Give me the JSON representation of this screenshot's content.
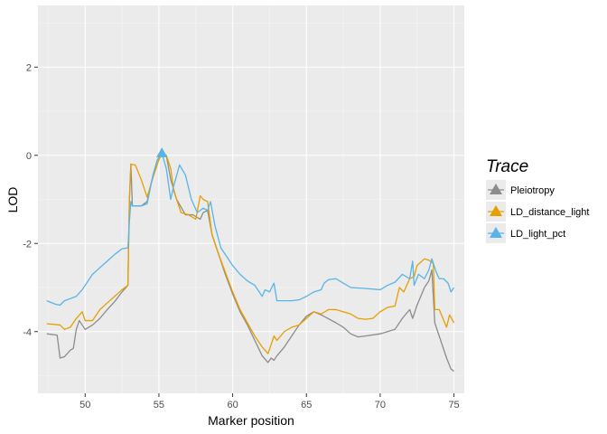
{
  "chart_data": {
    "type": "line",
    "xlabel": "Marker position",
    "ylabel": "LOD",
    "xlim": [
      46.8,
      75.7
    ],
    "ylim": [
      -5.4,
      3.4
    ],
    "x_ticks": [
      50,
      55,
      60,
      65,
      70,
      75
    ],
    "y_ticks": [
      2,
      0,
      -2,
      -4
    ],
    "x_tick_labels": [
      "50",
      "55",
      "60",
      "65",
      "70",
      "75"
    ],
    "y_tick_labels": [
      "2",
      "0",
      "-2",
      "-4"
    ],
    "grid": true,
    "legend": {
      "title": "Trace",
      "position": "right"
    },
    "peak": {
      "x": 55.2,
      "y": 0.05
    },
    "series": [
      {
        "name": "Pleiotropy",
        "color": "#8c8c8c",
        "points": [
          [
            47.4,
            -4.05
          ],
          [
            48.1,
            -4.08
          ],
          [
            48.3,
            -4.6
          ],
          [
            48.6,
            -4.57
          ],
          [
            49.0,
            -4.42
          ],
          [
            49.2,
            -4.38
          ],
          [
            49.4,
            -3.95
          ],
          [
            49.6,
            -3.75
          ],
          [
            49.8,
            -3.85
          ],
          [
            50.0,
            -3.95
          ],
          [
            50.5,
            -3.85
          ],
          [
            51.0,
            -3.7
          ],
          [
            51.5,
            -3.5
          ],
          [
            52.0,
            -3.32
          ],
          [
            52.5,
            -3.1
          ],
          [
            52.9,
            -2.95
          ],
          [
            53.0,
            -1.0
          ],
          [
            53.1,
            -0.2
          ],
          [
            53.2,
            -1.15
          ],
          [
            53.8,
            -1.15
          ],
          [
            54.2,
            -1.05
          ],
          [
            54.6,
            -0.45
          ],
          [
            54.9,
            -0.1
          ],
          [
            55.2,
            0.05
          ],
          [
            55.5,
            0.0
          ],
          [
            55.8,
            -0.55
          ],
          [
            56.2,
            -1.0
          ],
          [
            56.8,
            -1.35
          ],
          [
            57.3,
            -1.35
          ],
          [
            57.8,
            -1.45
          ],
          [
            58.0,
            -1.3
          ],
          [
            58.3,
            -1.25
          ],
          [
            58.6,
            -1.8
          ],
          [
            59.0,
            -2.2
          ],
          [
            59.5,
            -2.7
          ],
          [
            60.0,
            -3.15
          ],
          [
            60.5,
            -3.55
          ],
          [
            61.0,
            -3.85
          ],
          [
            61.5,
            -4.2
          ],
          [
            62.0,
            -4.55
          ],
          [
            62.4,
            -4.7
          ],
          [
            62.6,
            -4.6
          ],
          [
            62.8,
            -4.65
          ],
          [
            63.0,
            -4.55
          ],
          [
            63.5,
            -4.35
          ],
          [
            64.0,
            -4.1
          ],
          [
            64.5,
            -3.85
          ],
          [
            65.0,
            -3.65
          ],
          [
            65.5,
            -3.55
          ],
          [
            66.0,
            -3.62
          ],
          [
            67.0,
            -3.8
          ],
          [
            67.5,
            -3.9
          ],
          [
            68.0,
            -4.05
          ],
          [
            68.5,
            -4.12
          ],
          [
            69.0,
            -4.1
          ],
          [
            70.0,
            -4.05
          ],
          [
            70.5,
            -4.0
          ],
          [
            71.0,
            -3.95
          ],
          [
            71.5,
            -3.7
          ],
          [
            72.0,
            -3.5
          ],
          [
            72.2,
            -3.7
          ],
          [
            72.5,
            -3.4
          ],
          [
            73.0,
            -3.0
          ],
          [
            73.3,
            -2.85
          ],
          [
            73.5,
            -2.6
          ],
          [
            73.7,
            -3.8
          ],
          [
            74.0,
            -4.1
          ],
          [
            74.5,
            -4.6
          ],
          [
            74.8,
            -4.85
          ],
          [
            75.0,
            -4.9
          ]
        ]
      },
      {
        "name": "LD_distance_light",
        "color": "#e69f00",
        "points": [
          [
            47.4,
            -3.82
          ],
          [
            48.3,
            -3.85
          ],
          [
            48.6,
            -3.95
          ],
          [
            49.0,
            -3.9
          ],
          [
            49.4,
            -3.7
          ],
          [
            49.8,
            -3.55
          ],
          [
            50.0,
            -3.75
          ],
          [
            50.5,
            -3.75
          ],
          [
            51.0,
            -3.5
          ],
          [
            51.5,
            -3.35
          ],
          [
            52.0,
            -3.2
          ],
          [
            52.5,
            -3.05
          ],
          [
            52.9,
            -2.95
          ],
          [
            53.0,
            -1.0
          ],
          [
            53.1,
            -0.2
          ],
          [
            53.4,
            -0.22
          ],
          [
            53.8,
            -0.55
          ],
          [
            54.2,
            -0.95
          ],
          [
            54.6,
            -0.5
          ],
          [
            55.0,
            -0.1
          ],
          [
            55.2,
            0.03
          ],
          [
            55.5,
            0.0
          ],
          [
            55.8,
            -0.3
          ],
          [
            56.0,
            -0.8
          ],
          [
            56.5,
            -1.3
          ],
          [
            57.0,
            -1.35
          ],
          [
            57.5,
            -1.45
          ],
          [
            57.8,
            -0.92
          ],
          [
            58.0,
            -1.0
          ],
          [
            58.3,
            -1.05
          ],
          [
            58.6,
            -1.8
          ],
          [
            59.0,
            -2.2
          ],
          [
            59.5,
            -2.65
          ],
          [
            60.0,
            -3.1
          ],
          [
            60.5,
            -3.5
          ],
          [
            61.0,
            -3.8
          ],
          [
            61.5,
            -4.1
          ],
          [
            62.0,
            -4.35
          ],
          [
            62.4,
            -4.5
          ],
          [
            62.8,
            -4.1
          ],
          [
            63.0,
            -4.2
          ],
          [
            63.5,
            -4.0
          ],
          [
            64.0,
            -3.9
          ],
          [
            64.5,
            -3.85
          ],
          [
            65.0,
            -3.7
          ],
          [
            65.5,
            -3.55
          ],
          [
            66.0,
            -3.6
          ],
          [
            66.5,
            -3.5
          ],
          [
            67.0,
            -3.5
          ],
          [
            68.0,
            -3.6
          ],
          [
            68.5,
            -3.7
          ],
          [
            69.0,
            -3.72
          ],
          [
            69.5,
            -3.7
          ],
          [
            70.0,
            -3.55
          ],
          [
            70.5,
            -3.45
          ],
          [
            71.0,
            -3.42
          ],
          [
            71.3,
            -3.0
          ],
          [
            71.6,
            -3.1
          ],
          [
            72.0,
            -2.8
          ],
          [
            72.3,
            -2.75
          ],
          [
            72.5,
            -2.5
          ],
          [
            73.0,
            -2.35
          ],
          [
            73.3,
            -2.38
          ],
          [
            73.6,
            -2.45
          ],
          [
            73.7,
            -3.5
          ],
          [
            74.0,
            -3.5
          ],
          [
            74.5,
            -3.9
          ],
          [
            74.7,
            -3.62
          ],
          [
            75.0,
            -3.8
          ]
        ]
      },
      {
        "name": "LD_light_pct",
        "color": "#56b4e9",
        "points": [
          [
            47.4,
            -3.3
          ],
          [
            48.0,
            -3.38
          ],
          [
            48.3,
            -3.4
          ],
          [
            48.6,
            -3.3
          ],
          [
            49.0,
            -3.25
          ],
          [
            49.4,
            -3.2
          ],
          [
            49.8,
            -3.05
          ],
          [
            50.0,
            -2.95
          ],
          [
            50.5,
            -2.7
          ],
          [
            51.0,
            -2.55
          ],
          [
            51.5,
            -2.4
          ],
          [
            52.0,
            -2.25
          ],
          [
            52.5,
            -2.12
          ],
          [
            52.9,
            -2.1
          ],
          [
            53.0,
            -1.5
          ],
          [
            53.1,
            -1.05
          ],
          [
            53.2,
            -1.15
          ],
          [
            53.8,
            -1.15
          ],
          [
            54.2,
            -1.1
          ],
          [
            54.6,
            -0.45
          ],
          [
            54.9,
            -0.1
          ],
          [
            55.2,
            0.05
          ],
          [
            55.5,
            -0.3
          ],
          [
            55.8,
            -1.0
          ],
          [
            56.0,
            -0.7
          ],
          [
            56.4,
            -0.22
          ],
          [
            56.8,
            -0.45
          ],
          [
            57.2,
            -1.0
          ],
          [
            57.6,
            -1.3
          ],
          [
            58.0,
            -1.2
          ],
          [
            58.3,
            -1.25
          ],
          [
            58.5,
            -1.05
          ],
          [
            58.8,
            -1.6
          ],
          [
            59.2,
            -2.1
          ],
          [
            59.6,
            -2.3
          ],
          [
            60.0,
            -2.5
          ],
          [
            60.5,
            -2.7
          ],
          [
            61.0,
            -2.85
          ],
          [
            61.5,
            -2.95
          ],
          [
            62.0,
            -3.2
          ],
          [
            62.2,
            -3.05
          ],
          [
            62.5,
            -3.1
          ],
          [
            62.8,
            -2.9
          ],
          [
            63.0,
            -3.3
          ],
          [
            64.0,
            -3.3
          ],
          [
            64.5,
            -3.28
          ],
          [
            65.0,
            -3.2
          ],
          [
            65.5,
            -3.1
          ],
          [
            66.0,
            -3.05
          ],
          [
            66.2,
            -2.9
          ],
          [
            66.5,
            -2.82
          ],
          [
            67.0,
            -2.8
          ],
          [
            67.5,
            -2.9
          ],
          [
            68.0,
            -3.0
          ],
          [
            69.0,
            -3.02
          ],
          [
            70.0,
            -3.05
          ],
          [
            70.5,
            -2.95
          ],
          [
            71.0,
            -2.88
          ],
          [
            71.5,
            -2.7
          ],
          [
            72.0,
            -2.8
          ],
          [
            72.2,
            -2.4
          ],
          [
            72.3,
            -2.95
          ],
          [
            72.6,
            -2.7
          ],
          [
            73.0,
            -2.8
          ],
          [
            73.3,
            -2.6
          ],
          [
            73.5,
            -2.35
          ],
          [
            73.8,
            -2.65
          ],
          [
            74.0,
            -2.8
          ],
          [
            74.3,
            -2.8
          ],
          [
            74.6,
            -2.9
          ],
          [
            74.8,
            -3.1
          ],
          [
            75.0,
            -3.0
          ]
        ]
      }
    ]
  }
}
